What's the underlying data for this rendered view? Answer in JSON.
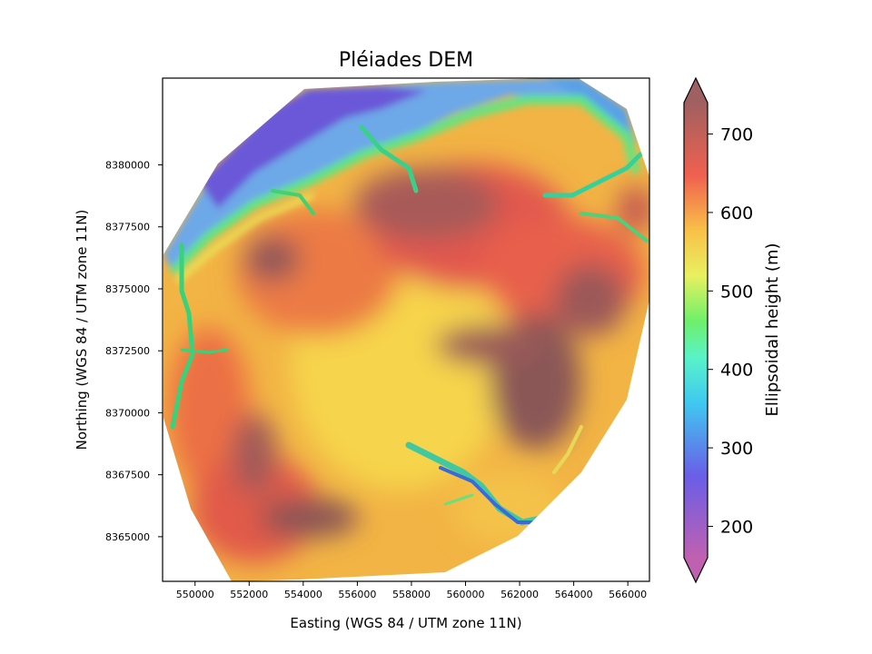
{
  "chart_data": {
    "type": "heatmap",
    "title": "Pléiades DEM",
    "xlabel": "Easting (WGS 84 / UTM zone 11N)",
    "ylabel": "Northing (WGS 84 / UTM zone 11N)",
    "xlim": [
      548800,
      566800
    ],
    "ylim": [
      8363200,
      8383500
    ],
    "x_ticks": [
      550000,
      552000,
      554000,
      556000,
      558000,
      560000,
      562000,
      564000,
      566000
    ],
    "x_tick_labels": [
      "550000",
      "552000",
      "554000",
      "556000",
      "558000",
      "560000",
      "562000",
      "564000",
      "566000"
    ],
    "y_ticks": [
      8365000,
      8367500,
      8370000,
      8372500,
      8375000,
      8377500,
      8380000
    ],
    "y_tick_labels": [
      "8365000",
      "8367500",
      "8370000",
      "8372500",
      "8375000",
      "8377500",
      "8380000"
    ],
    "colorbar": {
      "label": "Ellipsoidal height (m)",
      "range": [
        160,
        740
      ],
      "ticks": [
        200,
        300,
        400,
        500,
        600,
        700
      ],
      "tick_labels": [
        "200",
        "300",
        "400",
        "500",
        "600",
        "700"
      ],
      "extend": "both",
      "colormap": "rainbow (magenta-blue-cyan-green-yellow-red-brown), semi-transparent over hillshade"
    },
    "features": [
      {
        "label": "low northwest valley",
        "x": 551500,
        "y": 8379500,
        "height": 280
      },
      {
        "label": "northeast valley",
        "x": 563500,
        "y": 8382000,
        "height": 330
      },
      {
        "label": "central plateau",
        "x": 556500,
        "y": 8372000,
        "height": 560
      },
      {
        "label": "north central high",
        "x": 558500,
        "y": 8375500,
        "height": 690
      },
      {
        "label": "east high ridge",
        "x": 562500,
        "y": 8371500,
        "height": 720
      },
      {
        "label": "southwest high",
        "x": 554500,
        "y": 8365500,
        "height": 720
      },
      {
        "label": "southeast canyon",
        "x": 561500,
        "y": 8366000,
        "height": 340
      }
    ]
  }
}
